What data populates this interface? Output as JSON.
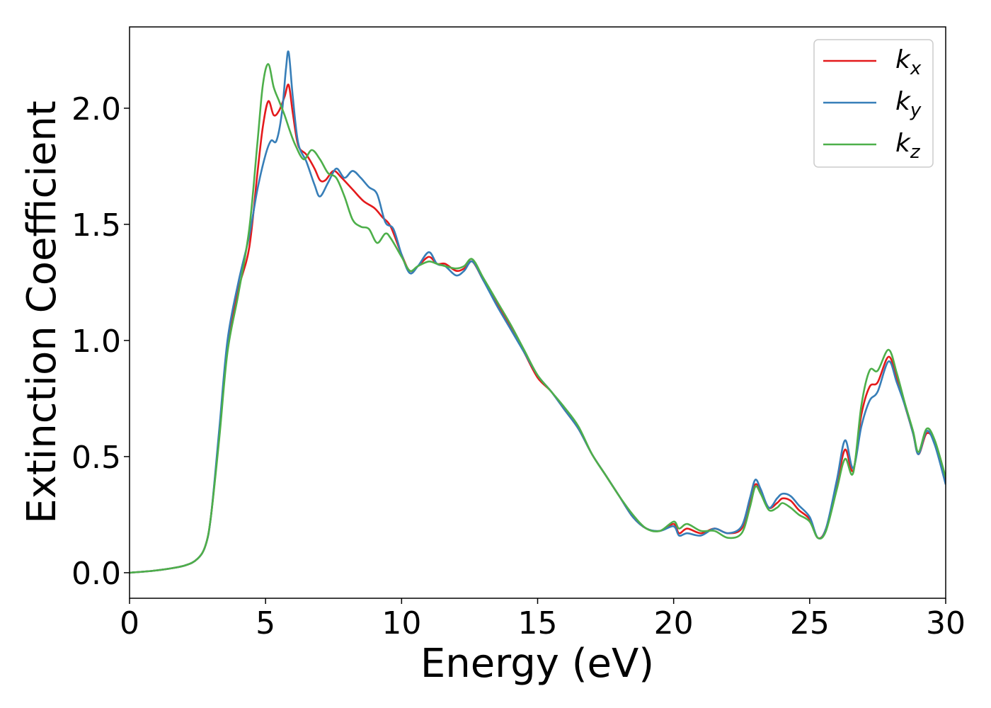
{
  "chart_data": {
    "type": "line",
    "xlabel": "Energy (eV)",
    "ylabel": "Extinction Coefficient",
    "xlim": [
      0,
      30
    ],
    "ylim": [
      -0.11,
      2.35
    ],
    "xticks": [
      0,
      5,
      10,
      15,
      20,
      25,
      30
    ],
    "xtick_labels": [
      "0",
      "5",
      "10",
      "15",
      "20",
      "25",
      "30"
    ],
    "yticks": [
      0.0,
      0.5,
      1.0,
      1.5,
      2.0
    ],
    "ytick_labels": [
      "0.0",
      "0.5",
      "1.0",
      "1.5",
      "2.0"
    ],
    "grid": false,
    "legend_position": "top-right",
    "series": [
      {
        "name": "k_x",
        "legend_base": "k",
        "legend_sub": "x",
        "color": "#e41a1c",
        "points": [
          [
            0,
            0.0
          ],
          [
            1,
            0.01
          ],
          [
            2,
            0.03
          ],
          [
            2.5,
            0.06
          ],
          [
            2.8,
            0.12
          ],
          [
            3.0,
            0.25
          ],
          [
            3.3,
            0.6
          ],
          [
            3.6,
            0.98
          ],
          [
            4.0,
            1.22
          ],
          [
            4.4,
            1.4
          ],
          [
            4.7,
            1.72
          ],
          [
            4.9,
            1.92
          ],
          [
            5.1,
            2.03
          ],
          [
            5.3,
            1.97
          ],
          [
            5.5,
            1.99
          ],
          [
            5.7,
            2.05
          ],
          [
            5.85,
            2.1
          ],
          [
            6.0,
            1.98
          ],
          [
            6.2,
            1.84
          ],
          [
            6.5,
            1.8
          ],
          [
            6.8,
            1.74
          ],
          [
            7.0,
            1.69
          ],
          [
            7.2,
            1.69
          ],
          [
            7.5,
            1.73
          ],
          [
            7.8,
            1.7
          ],
          [
            8.2,
            1.65
          ],
          [
            8.6,
            1.6
          ],
          [
            9.0,
            1.57
          ],
          [
            9.3,
            1.53
          ],
          [
            9.6,
            1.49
          ],
          [
            10.0,
            1.37
          ],
          [
            10.3,
            1.3
          ],
          [
            10.6,
            1.32
          ],
          [
            11.0,
            1.36
          ],
          [
            11.3,
            1.33
          ],
          [
            11.6,
            1.33
          ],
          [
            12.0,
            1.3
          ],
          [
            12.3,
            1.31
          ],
          [
            12.6,
            1.34
          ],
          [
            13.0,
            1.26
          ],
          [
            13.5,
            1.16
          ],
          [
            14.0,
            1.06
          ],
          [
            14.5,
            0.95
          ],
          [
            15.0,
            0.84
          ],
          [
            15.5,
            0.78
          ],
          [
            16.0,
            0.7
          ],
          [
            16.5,
            0.62
          ],
          [
            17.0,
            0.51
          ],
          [
            17.5,
            0.42
          ],
          [
            18.0,
            0.33
          ],
          [
            18.5,
            0.24
          ],
          [
            19.0,
            0.19
          ],
          [
            19.5,
            0.18
          ],
          [
            20.0,
            0.21
          ],
          [
            20.2,
            0.17
          ],
          [
            20.5,
            0.19
          ],
          [
            21.0,
            0.17
          ],
          [
            21.5,
            0.19
          ],
          [
            22.0,
            0.17
          ],
          [
            22.5,
            0.19
          ],
          [
            22.8,
            0.3
          ],
          [
            23.0,
            0.38
          ],
          [
            23.2,
            0.35
          ],
          [
            23.5,
            0.28
          ],
          [
            23.8,
            0.3
          ],
          [
            24.0,
            0.32
          ],
          [
            24.3,
            0.31
          ],
          [
            24.6,
            0.27
          ],
          [
            25.0,
            0.23
          ],
          [
            25.3,
            0.15
          ],
          [
            25.6,
            0.19
          ],
          [
            26.0,
            0.38
          ],
          [
            26.3,
            0.53
          ],
          [
            26.6,
            0.44
          ],
          [
            26.9,
            0.68
          ],
          [
            27.2,
            0.8
          ],
          [
            27.5,
            0.82
          ],
          [
            27.9,
            0.93
          ],
          [
            28.2,
            0.84
          ],
          [
            28.5,
            0.72
          ],
          [
            28.8,
            0.6
          ],
          [
            29.0,
            0.51
          ],
          [
            29.3,
            0.6
          ],
          [
            29.6,
            0.56
          ],
          [
            30.0,
            0.4
          ]
        ]
      },
      {
        "name": "k_y",
        "legend_base": "k",
        "legend_sub": "y",
        "color": "#377eb8",
        "points": [
          [
            0,
            0.0
          ],
          [
            1,
            0.01
          ],
          [
            2,
            0.03
          ],
          [
            2.5,
            0.06
          ],
          [
            2.8,
            0.12
          ],
          [
            3.0,
            0.25
          ],
          [
            3.3,
            0.62
          ],
          [
            3.6,
            1.0
          ],
          [
            4.0,
            1.25
          ],
          [
            4.4,
            1.45
          ],
          [
            4.7,
            1.65
          ],
          [
            5.0,
            1.8
          ],
          [
            5.2,
            1.86
          ],
          [
            5.4,
            1.86
          ],
          [
            5.6,
            1.98
          ],
          [
            5.75,
            2.17
          ],
          [
            5.85,
            2.24
          ],
          [
            6.0,
            2.05
          ],
          [
            6.2,
            1.85
          ],
          [
            6.5,
            1.77
          ],
          [
            6.8,
            1.67
          ],
          [
            7.0,
            1.62
          ],
          [
            7.3,
            1.68
          ],
          [
            7.6,
            1.74
          ],
          [
            7.9,
            1.7
          ],
          [
            8.2,
            1.73
          ],
          [
            8.5,
            1.7
          ],
          [
            8.8,
            1.66
          ],
          [
            9.1,
            1.63
          ],
          [
            9.4,
            1.51
          ],
          [
            9.7,
            1.48
          ],
          [
            10.0,
            1.37
          ],
          [
            10.3,
            1.29
          ],
          [
            10.6,
            1.32
          ],
          [
            11.0,
            1.38
          ],
          [
            11.3,
            1.33
          ],
          [
            11.6,
            1.32
          ],
          [
            12.0,
            1.28
          ],
          [
            12.3,
            1.3
          ],
          [
            12.6,
            1.34
          ],
          [
            13.0,
            1.26
          ],
          [
            13.5,
            1.15
          ],
          [
            14.0,
            1.05
          ],
          [
            14.5,
            0.95
          ],
          [
            15.0,
            0.85
          ],
          [
            15.5,
            0.78
          ],
          [
            16.0,
            0.7
          ],
          [
            16.5,
            0.62
          ],
          [
            17.0,
            0.51
          ],
          [
            17.5,
            0.42
          ],
          [
            18.0,
            0.33
          ],
          [
            18.5,
            0.24
          ],
          [
            19.0,
            0.19
          ],
          [
            19.5,
            0.18
          ],
          [
            20.0,
            0.2
          ],
          [
            20.2,
            0.16
          ],
          [
            20.5,
            0.17
          ],
          [
            21.0,
            0.16
          ],
          [
            21.5,
            0.19
          ],
          [
            22.0,
            0.17
          ],
          [
            22.5,
            0.2
          ],
          [
            22.8,
            0.32
          ],
          [
            23.0,
            0.4
          ],
          [
            23.2,
            0.36
          ],
          [
            23.5,
            0.28
          ],
          [
            23.8,
            0.32
          ],
          [
            24.0,
            0.34
          ],
          [
            24.3,
            0.33
          ],
          [
            24.6,
            0.29
          ],
          [
            25.0,
            0.24
          ],
          [
            25.3,
            0.15
          ],
          [
            25.6,
            0.19
          ],
          [
            26.0,
            0.4
          ],
          [
            26.3,
            0.57
          ],
          [
            26.6,
            0.45
          ],
          [
            26.9,
            0.63
          ],
          [
            27.2,
            0.74
          ],
          [
            27.5,
            0.78
          ],
          [
            27.9,
            0.91
          ],
          [
            28.2,
            0.82
          ],
          [
            28.5,
            0.72
          ],
          [
            28.8,
            0.6
          ],
          [
            29.0,
            0.51
          ],
          [
            29.3,
            0.61
          ],
          [
            29.6,
            0.55
          ],
          [
            30.0,
            0.38
          ]
        ]
      },
      {
        "name": "k_z",
        "legend_base": "k",
        "legend_sub": "z",
        "color": "#4daf4a",
        "points": [
          [
            0,
            0.0
          ],
          [
            1,
            0.01
          ],
          [
            2,
            0.03
          ],
          [
            2.5,
            0.06
          ],
          [
            2.8,
            0.12
          ],
          [
            3.0,
            0.25
          ],
          [
            3.3,
            0.58
          ],
          [
            3.6,
            0.95
          ],
          [
            4.0,
            1.2
          ],
          [
            4.4,
            1.48
          ],
          [
            4.7,
            1.85
          ],
          [
            4.9,
            2.1
          ],
          [
            5.1,
            2.19
          ],
          [
            5.3,
            2.09
          ],
          [
            5.5,
            2.03
          ],
          [
            5.7,
            1.97
          ],
          [
            5.9,
            1.9
          ],
          [
            6.1,
            1.84
          ],
          [
            6.4,
            1.78
          ],
          [
            6.7,
            1.82
          ],
          [
            7.0,
            1.78
          ],
          [
            7.3,
            1.72
          ],
          [
            7.6,
            1.7
          ],
          [
            7.9,
            1.62
          ],
          [
            8.2,
            1.52
          ],
          [
            8.5,
            1.49
          ],
          [
            8.8,
            1.48
          ],
          [
            9.1,
            1.42
          ],
          [
            9.4,
            1.46
          ],
          [
            9.6,
            1.44
          ],
          [
            10.0,
            1.36
          ],
          [
            10.3,
            1.3
          ],
          [
            10.6,
            1.32
          ],
          [
            11.0,
            1.34
          ],
          [
            11.3,
            1.33
          ],
          [
            11.6,
            1.32
          ],
          [
            12.0,
            1.31
          ],
          [
            12.3,
            1.32
          ],
          [
            12.6,
            1.35
          ],
          [
            13.0,
            1.27
          ],
          [
            13.5,
            1.17
          ],
          [
            14.0,
            1.07
          ],
          [
            14.5,
            0.96
          ],
          [
            15.0,
            0.85
          ],
          [
            15.5,
            0.78
          ],
          [
            16.0,
            0.71
          ],
          [
            16.5,
            0.63
          ],
          [
            17.0,
            0.51
          ],
          [
            17.5,
            0.42
          ],
          [
            18.0,
            0.33
          ],
          [
            18.5,
            0.25
          ],
          [
            19.0,
            0.19
          ],
          [
            19.5,
            0.18
          ],
          [
            20.0,
            0.22
          ],
          [
            20.2,
            0.19
          ],
          [
            20.5,
            0.21
          ],
          [
            21.0,
            0.18
          ],
          [
            21.5,
            0.18
          ],
          [
            22.0,
            0.15
          ],
          [
            22.5,
            0.17
          ],
          [
            22.8,
            0.28
          ],
          [
            23.0,
            0.37
          ],
          [
            23.2,
            0.34
          ],
          [
            23.5,
            0.27
          ],
          [
            23.8,
            0.28
          ],
          [
            24.0,
            0.3
          ],
          [
            24.3,
            0.28
          ],
          [
            24.6,
            0.25
          ],
          [
            25.0,
            0.22
          ],
          [
            25.3,
            0.15
          ],
          [
            25.6,
            0.18
          ],
          [
            26.0,
            0.36
          ],
          [
            26.3,
            0.49
          ],
          [
            26.6,
            0.43
          ],
          [
            26.9,
            0.72
          ],
          [
            27.2,
            0.87
          ],
          [
            27.5,
            0.87
          ],
          [
            27.9,
            0.96
          ],
          [
            28.2,
            0.86
          ],
          [
            28.5,
            0.73
          ],
          [
            28.8,
            0.61
          ],
          [
            29.0,
            0.52
          ],
          [
            29.3,
            0.62
          ],
          [
            29.6,
            0.57
          ],
          [
            30.0,
            0.41
          ]
        ]
      }
    ]
  }
}
